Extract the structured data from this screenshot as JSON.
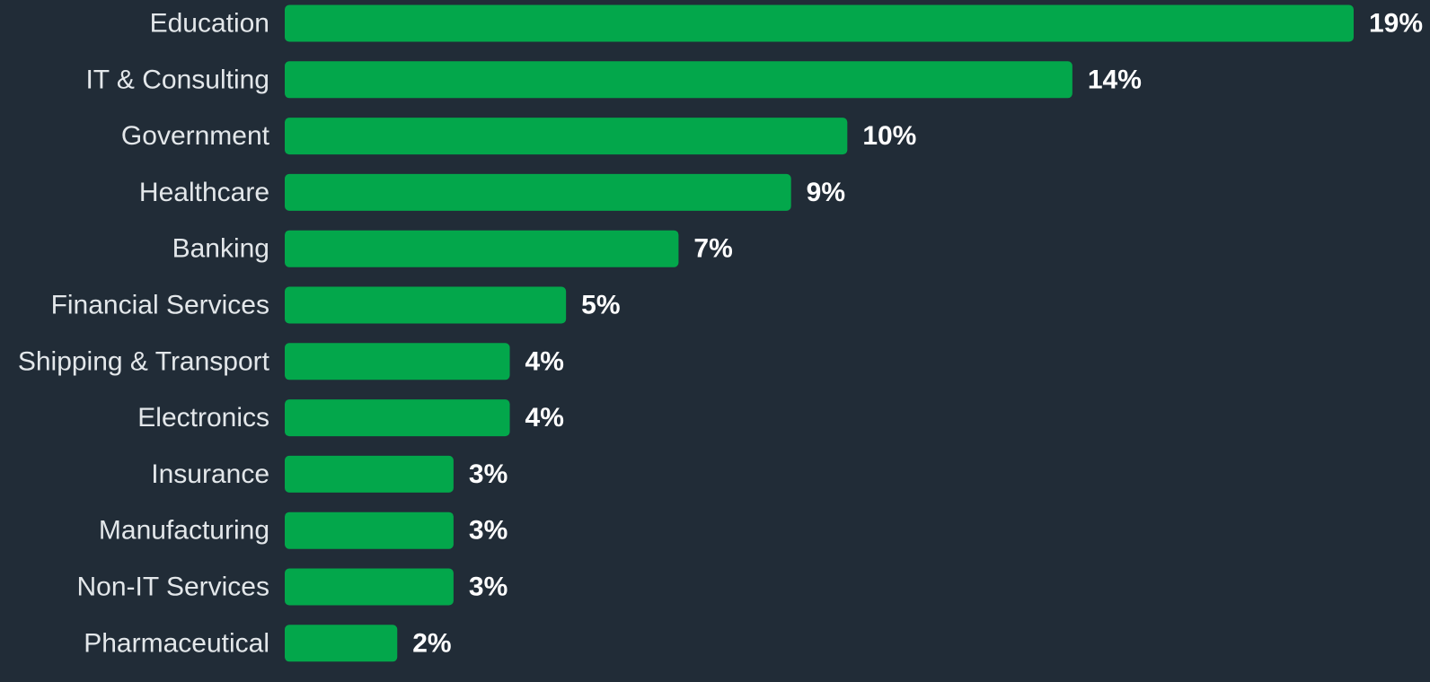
{
  "colors": {
    "background": "#212c37",
    "bar": "#03a74b",
    "category_text": "#e3e7ea",
    "value_text": "#ffffff"
  },
  "chart_data": {
    "type": "bar",
    "orientation": "horizontal",
    "categories": [
      "Education",
      "IT & Consulting",
      "Government",
      "Healthcare",
      "Banking",
      "Financial Services",
      "Shipping & Transport",
      "Electronics",
      "Insurance",
      "Manufacturing",
      "Non-IT Services",
      "Pharmaceutical"
    ],
    "values": [
      19,
      14,
      10,
      9,
      7,
      5,
      4,
      4,
      3,
      3,
      3,
      2
    ],
    "value_labels": [
      "19%",
      "14%",
      "10%",
      "9%",
      "7%",
      "5%",
      "4%",
      "4%",
      "3%",
      "3%",
      "3%",
      "2%"
    ],
    "unit": "%",
    "grid": false,
    "legend": "none"
  }
}
